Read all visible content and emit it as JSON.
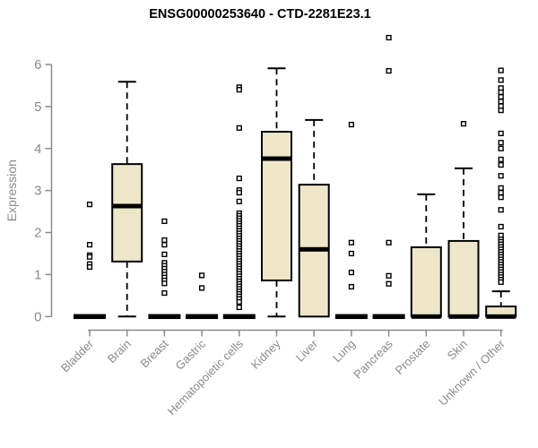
{
  "title": "ENSG00000253640 - CTD-2281E23.1",
  "colors": {
    "background": "#FFFFFF",
    "box_fill": "#EDE6C9",
    "box_border": "#000000",
    "median": "#000000",
    "outlier_stroke": "#000000",
    "outlier_fill": "#FFFFFF",
    "axis": "#8A8A8A",
    "title_text": "#000000"
  },
  "chart_data": {
    "type": "boxplot",
    "title": "ENSG00000253640 - CTD-2281E23.1",
    "xlabel": "",
    "ylabel": "Expression",
    "ylim": [
      0,
      6
    ],
    "yticks": [
      0,
      1,
      2,
      3,
      4,
      5,
      6
    ],
    "grid": false,
    "legend": "none",
    "categories": [
      "Bladder",
      "Brain",
      "Breast",
      "Gastric",
      "Hematopoietic cells",
      "Kidney",
      "Liver",
      "Lung",
      "Pancreas",
      "Prostate",
      "Skin",
      "Unknown / Other"
    ],
    "series": [
      {
        "name": "Bladder",
        "whisker_low": 0,
        "q1": 0,
        "median": 0,
        "q3": 0,
        "whisker_high": 0,
        "outliers": [
          2.67,
          1.71,
          1.46,
          1.42,
          1.25,
          1.18
        ]
      },
      {
        "name": "Brain",
        "whisker_low": 0,
        "q1": 1.31,
        "median": 2.63,
        "q3": 3.63,
        "whisker_high": 5.59,
        "outliers": []
      },
      {
        "name": "Breast",
        "whisker_low": 0,
        "q1": 0,
        "median": 0,
        "q3": 0,
        "whisker_high": 0,
        "outliers": [
          2.27,
          1.82,
          1.71,
          1.48,
          1.28,
          1.21,
          1.14,
          1.07,
          1.0,
          0.93,
          0.86,
          0.79,
          0.56
        ]
      },
      {
        "name": "Gastric",
        "whisker_low": 0,
        "q1": 0,
        "median": 0,
        "q3": 0,
        "whisker_high": 0,
        "outliers": [
          0.98,
          0.68
        ]
      },
      {
        "name": "Hematopoietic cells",
        "whisker_low": 0,
        "q1": 0,
        "median": 0,
        "q3": 0,
        "whisker_high": 0,
        "outliers": [
          5.46,
          5.4,
          4.49,
          3.29,
          3.01,
          2.95,
          2.74,
          2.46,
          2.4,
          2.34,
          2.28,
          2.22,
          2.16,
          2.1,
          2.04,
          1.98,
          1.92,
          1.86,
          1.8,
          1.74,
          1.68,
          1.62,
          1.56,
          1.5,
          1.44,
          1.38,
          1.32,
          1.26,
          1.2,
          1.14,
          1.08,
          1.02,
          0.96,
          0.9,
          0.84,
          0.78,
          0.72,
          0.66,
          0.6,
          0.54,
          0.48,
          0.42,
          0.35,
          0.22
        ]
      },
      {
        "name": "Kidney",
        "whisker_low": 0,
        "q1": 0.86,
        "median": 3.76,
        "q3": 4.4,
        "whisker_high": 5.91,
        "outliers": []
      },
      {
        "name": "Liver",
        "whisker_low": 0,
        "q1": 0,
        "median": 1.6,
        "q3": 3.14,
        "whisker_high": 4.68,
        "outliers": []
      },
      {
        "name": "Lung",
        "whisker_low": 0,
        "q1": 0,
        "median": 0,
        "q3": 0,
        "whisker_high": 0,
        "outliers": [
          4.57,
          1.76,
          1.5,
          1.05,
          0.71
        ]
      },
      {
        "name": "Pancreas",
        "whisker_low": 0,
        "q1": 0,
        "median": 0,
        "q3": 0,
        "whisker_high": 0,
        "outliers": [
          6.64,
          5.85,
          1.76,
          0.97,
          0.78
        ]
      },
      {
        "name": "Prostate",
        "whisker_low": 0,
        "q1": 0,
        "median": 0,
        "q3": 1.65,
        "whisker_high": 2.91,
        "outliers": []
      },
      {
        "name": "Skin",
        "whisker_low": 0,
        "q1": 0,
        "median": 0,
        "q3": 1.8,
        "whisker_high": 3.53,
        "outliers": [
          4.59
        ]
      },
      {
        "name": "Unknown / Other",
        "whisker_low": 0,
        "q1": 0,
        "median": 0,
        "q3": 0.24,
        "whisker_high": 0.6,
        "outliers": [
          5.86,
          5.63,
          5.44,
          5.34,
          5.23,
          5.12,
          5.01,
          4.91,
          4.36,
          4.14,
          4.0,
          3.74,
          3.61,
          3.35,
          3.06,
          2.95,
          2.84,
          2.54,
          2.14,
          1.93,
          1.84,
          1.78,
          1.72,
          1.66,
          1.6,
          1.54,
          1.48,
          1.42,
          1.36,
          1.3,
          1.24,
          1.18,
          1.12,
          1.06,
          1.0,
          0.94,
          0.88,
          0.82
        ]
      }
    ]
  }
}
